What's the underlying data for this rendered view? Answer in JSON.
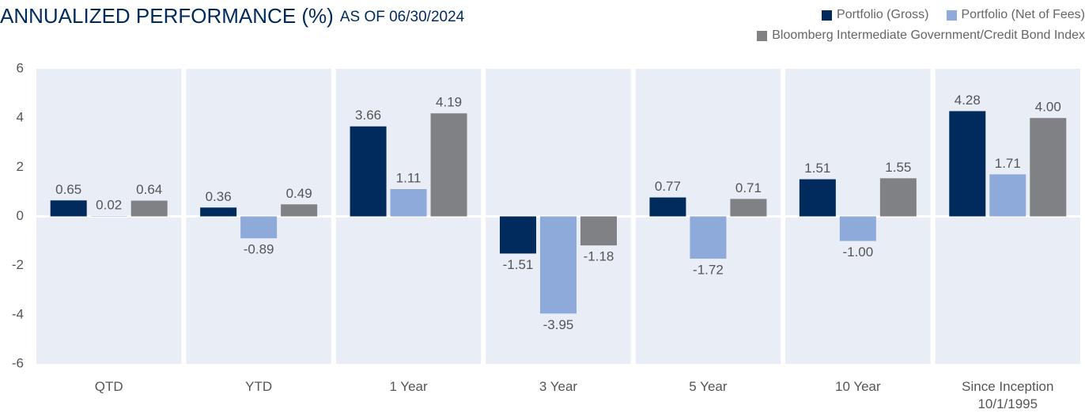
{
  "chart_data": {
    "type": "bar",
    "title": "ANNUALIZED PERFORMANCE (%)",
    "subtitle": "AS OF 06/30/2024",
    "categories": [
      "QTD",
      "YTD",
      "1 Year",
      "3 Year",
      "5 Year",
      "10 Year",
      "Since Inception 10/1/1995"
    ],
    "series": [
      {
        "name": "Portfolio (Gross)",
        "color": "#002b5c",
        "values": [
          0.65,
          0.36,
          3.66,
          -1.51,
          0.77,
          1.51,
          4.28
        ],
        "value_labels": [
          "0.65",
          "0.36",
          "3.66",
          "-1.51",
          "0.77",
          "1.51",
          "4.28"
        ]
      },
      {
        "name": "Portfolio (Net of Fees)",
        "color": "#8eaadb",
        "values": [
          0.02,
          -0.89,
          1.11,
          -3.95,
          -1.72,
          -1.0,
          1.71
        ],
        "value_labels": [
          "0.02",
          "-0.89",
          "1.11",
          "-3.95",
          "-1.72",
          "-1.00",
          "1.71"
        ]
      },
      {
        "name": "Bloomberg Intermediate Government/Credit Bond Index",
        "color": "#808184",
        "values": [
          0.64,
          0.49,
          4.19,
          -1.18,
          0.71,
          1.55,
          4.0
        ],
        "value_labels": [
          "0.64",
          "0.49",
          "4.19",
          "-1.18",
          "0.71",
          "1.55",
          "4.00"
        ]
      }
    ],
    "ylim": [
      -6,
      6
    ],
    "yticks": [
      -6,
      -4,
      -2,
      0,
      2,
      4,
      6
    ],
    "grid": false,
    "legend": "top-right"
  }
}
